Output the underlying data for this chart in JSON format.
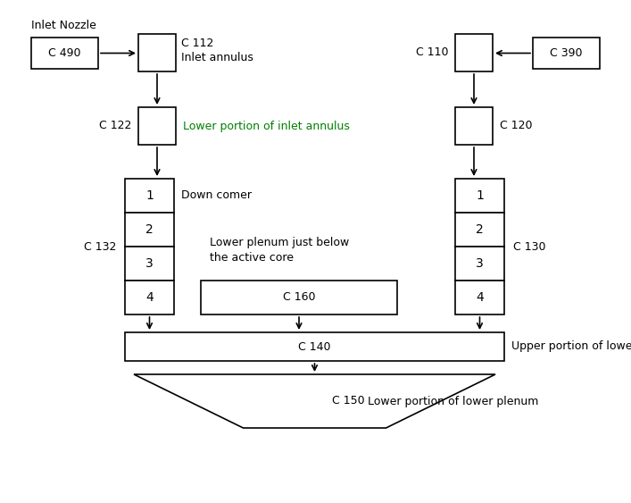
{
  "bg_color": "#ffffff",
  "line_color": "#000000",
  "text_color": "#000000",
  "green_text_color": "#008000",
  "figsize": [
    7.07,
    5.63
  ],
  "dpi": 100,
  "lw": 1.2,
  "fontsize": 9,
  "inlet_nozzle_label": "Inlet Nozzle",
  "c490_label": "C 490",
  "c112_label": "C 112",
  "c112_sub": "Inlet annulus",
  "c122_label": "C 122",
  "c122_sub": "Lower portion of inlet annulus",
  "c132_label": "C 132",
  "dc_label": "Down comer",
  "dc_nums": [
    1,
    2,
    3,
    4
  ],
  "c160_label": "C 160",
  "c160_sub1": "Lower plenum just below",
  "c160_sub2": "the active core",
  "c140_label": "C 140",
  "c140_sub": "Upper portion of lower plenum",
  "c150_label": "C 150",
  "c150_sub": "Lower portion of lower plenum",
  "c390_label": "C 390",
  "c110_label": "C 110",
  "c120_label": "C 120",
  "c130_label": "C 130"
}
